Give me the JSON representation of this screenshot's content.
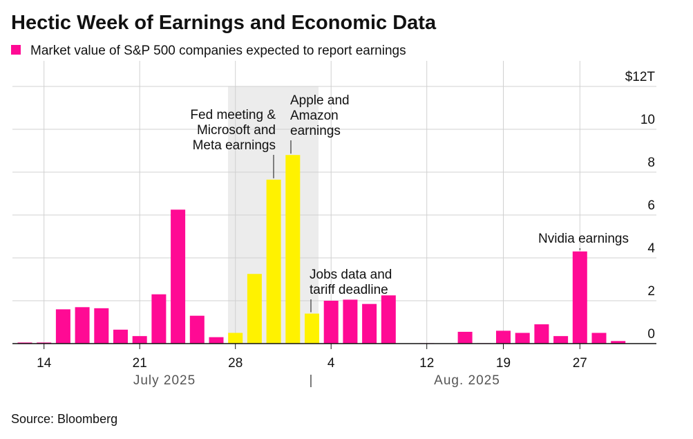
{
  "chart_data": {
    "type": "bar",
    "title": "Hectic Week of Earnings and Economic Data",
    "legend": "Market value of S&P 500 companies expected to report earnings",
    "categories": [
      null,
      "14",
      null,
      null,
      null,
      null,
      "21",
      null,
      null,
      null,
      null,
      "28",
      null,
      null,
      null,
      null,
      "4",
      null,
      null,
      null,
      null,
      "12",
      null,
      null,
      null,
      "19",
      null,
      null,
      null,
      "27",
      null,
      null
    ],
    "values": [
      0.05,
      0.05,
      1.6,
      1.7,
      1.65,
      0.65,
      0.35,
      2.3,
      6.25,
      1.3,
      0.3,
      0.5,
      3.25,
      7.65,
      8.8,
      1.4,
      2.0,
      2.05,
      1.85,
      2.25,
      0,
      0.02,
      0,
      0.55,
      0.02,
      0.6,
      0.5,
      0.9,
      0.35,
      4.3,
      0.5,
      0.12
    ],
    "colors": [
      "#ff0a94",
      "#ff0a94",
      "#ff0a94",
      "#ff0a94",
      "#ff0a94",
      "#ff0a94",
      "#ff0a94",
      "#ff0a94",
      "#ff0a94",
      "#ff0a94",
      "#ff0a94",
      "#fff200",
      "#fff200",
      "#fff200",
      "#fff200",
      "#fff200",
      "#ff0a94",
      "#ff0a94",
      "#ff0a94",
      "#ff0a94",
      "#ff0a94",
      "#ff0a94",
      "#ff0a94",
      "#ff0a94",
      "#ff0a94",
      "#ff0a94",
      "#ff0a94",
      "#ff0a94",
      "#ff0a94",
      "#ff0a94",
      "#ff0a94",
      "#ff0a94"
    ],
    "legend_color": "#ff0a94",
    "ylim": [
      0,
      12
    ],
    "yticks": [
      0,
      2,
      4,
      6,
      8,
      10,
      {
        "value": 12,
        "label": "$12T"
      }
    ],
    "grid": true,
    "months": [
      "July 2025",
      "Aug. 2025"
    ],
    "annotations": [
      {
        "lines": [
          "Fed meeting &",
          "Microsoft and",
          "Meta earnings"
        ],
        "bar": 13
      },
      {
        "lines": [
          "Apple and",
          "Amazon",
          "earnings"
        ],
        "bar": 14
      },
      {
        "lines": [
          "Jobs data and",
          "tariff deadline"
        ],
        "bar": 15
      },
      {
        "lines": [
          "Nvidia earnings"
        ],
        "bar": 29
      }
    ],
    "source": "Source: Bloomberg"
  }
}
